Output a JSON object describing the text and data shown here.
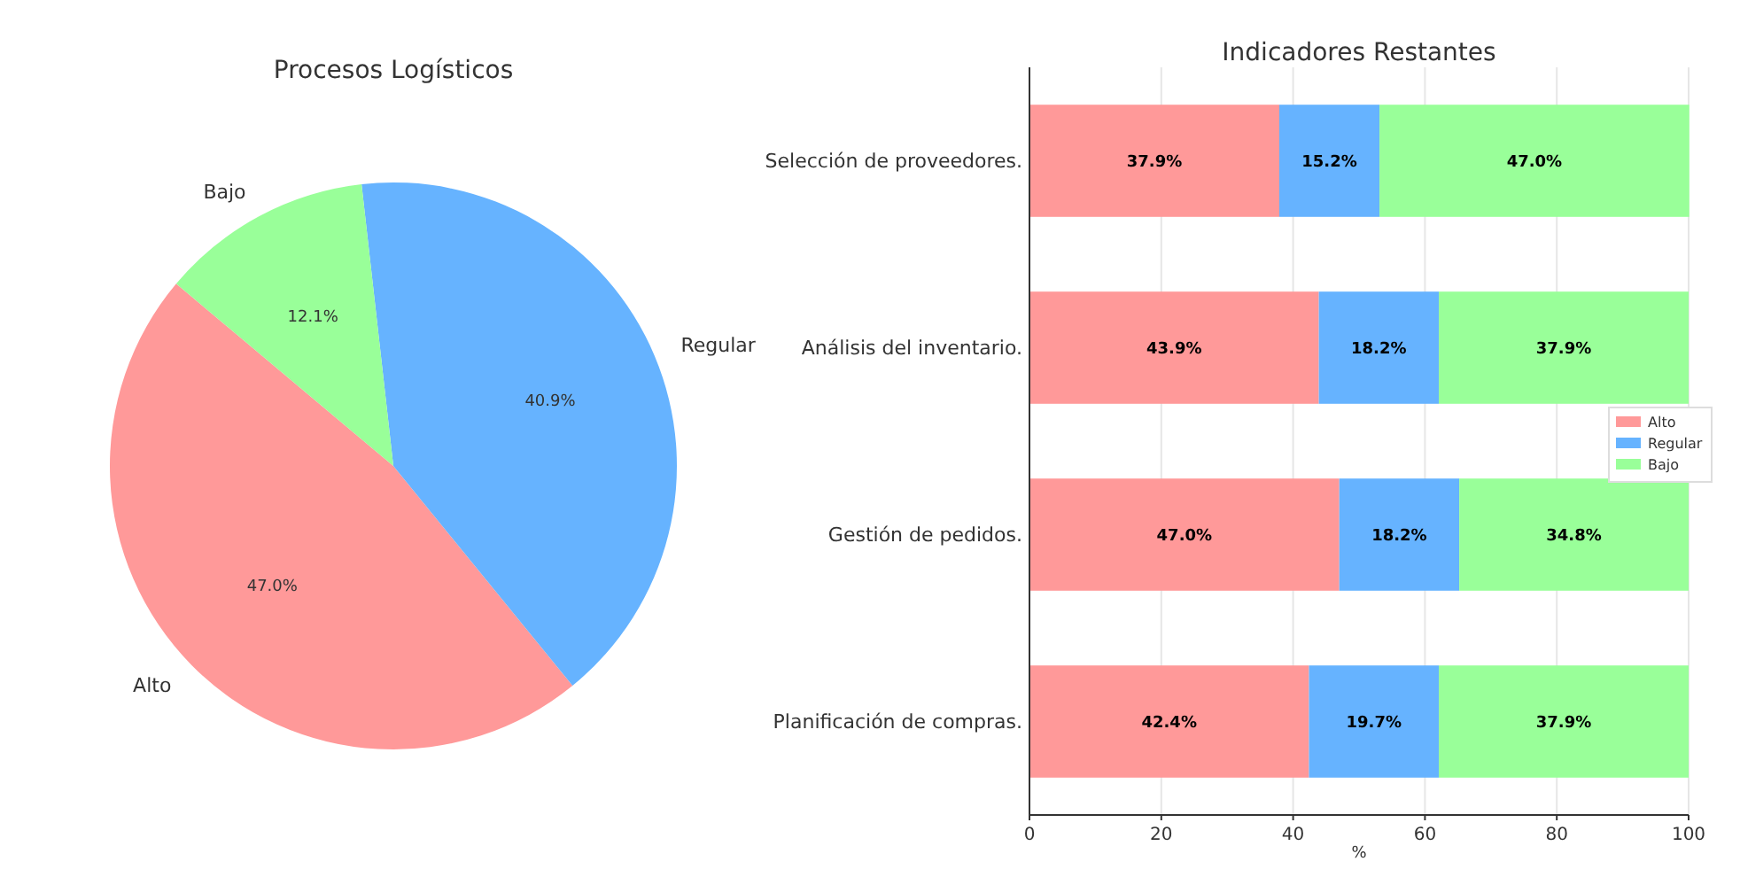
{
  "chart_data": [
    {
      "type": "pie",
      "title": "Procesos Logísticos",
      "categories": [
        "Alto",
        "Regular",
        "Bajo"
      ],
      "values": [
        47.0,
        40.9,
        12.1
      ],
      "colors": [
        "#ff9999",
        "#66b3ff",
        "#99ff99"
      ],
      "value_labels": [
        "47.0%",
        "40.9%",
        "12.1%"
      ]
    },
    {
      "type": "bar",
      "orientation": "horizontal",
      "stacked": true,
      "title": "Indicadores Restantes",
      "xlabel": "%",
      "categories": [
        "Selección de proveedores.",
        "Análisis del inventario.",
        "Gestión de pedidos.",
        "Planificación de compras."
      ],
      "series": [
        {
          "name": "Alto",
          "color": "#ff9999",
          "values": [
            37.9,
            43.9,
            47.0,
            42.4
          ],
          "value_labels": [
            "37.9%",
            "43.9%",
            "47.0%",
            "42.4%"
          ]
        },
        {
          "name": "Regular",
          "color": "#66b3ff",
          "values": [
            15.2,
            18.2,
            18.2,
            19.7
          ],
          "value_labels": [
            "15.2%",
            "18.2%",
            "18.2%",
            "19.7%"
          ]
        },
        {
          "name": "Bajo",
          "color": "#99ff99",
          "values": [
            47.0,
            37.9,
            34.8,
            37.9
          ],
          "value_labels": [
            "47.0%",
            "37.9%",
            "34.8%",
            "37.9%"
          ]
        }
      ],
      "xlim": [
        0,
        100
      ],
      "xticks": [
        0,
        20,
        40,
        60,
        80,
        100
      ],
      "grid": "x",
      "legend": "right"
    }
  ]
}
